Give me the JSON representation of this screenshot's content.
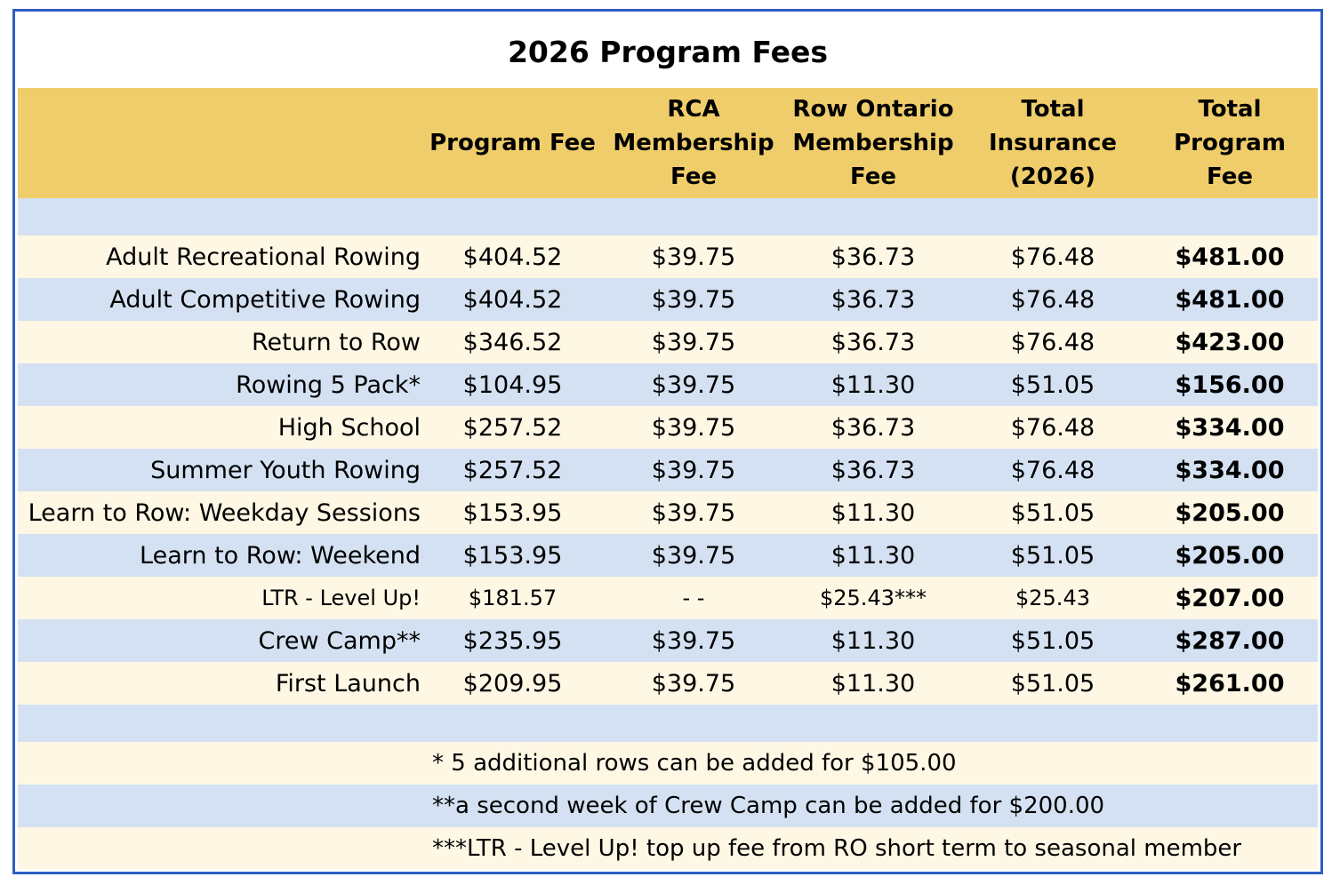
{
  "title": "2026 Program Fees",
  "columns": [
    "Program Fee",
    "RCA Membership Fee",
    "Row Ontario Membership Fee",
    "Total Insurance (2026)",
    "Total Program Fee"
  ],
  "header_lines": [
    [
      "Program Fee"
    ],
    [
      "RCA",
      "Membership",
      "Fee"
    ],
    [
      "Row Ontario",
      "Membership",
      "Fee"
    ],
    [
      "Total",
      "Insurance",
      "(2026)"
    ],
    [
      "Total Program",
      "Fee"
    ]
  ],
  "rows": [
    {
      "name": "Adult Recreational Rowing",
      "program_fee": "$404.52",
      "rca": "$39.75",
      "ro": "$36.73",
      "insurance": "$76.48",
      "total": "$481.00"
    },
    {
      "name": "Adult Competitive Rowing",
      "program_fee": "$404.52",
      "rca": "$39.75",
      "ro": "$36.73",
      "insurance": "$76.48",
      "total": "$481.00"
    },
    {
      "name": "Return to Row",
      "program_fee": "$346.52",
      "rca": "$39.75",
      "ro": "$36.73",
      "insurance": "$76.48",
      "total": "$423.00"
    },
    {
      "name": "Rowing 5 Pack*",
      "program_fee": "$104.95",
      "rca": "$39.75",
      "ro": "$11.30",
      "insurance": "$51.05",
      "total": "$156.00"
    },
    {
      "name": "High School",
      "program_fee": "$257.52",
      "rca": "$39.75",
      "ro": "$36.73",
      "insurance": "$76.48",
      "total": "$334.00"
    },
    {
      "name": "Summer Youth Rowing",
      "program_fee": "$257.52",
      "rca": "$39.75",
      "ro": "$36.73",
      "insurance": "$76.48",
      "total": "$334.00"
    },
    {
      "name": "Learn to Row: Weekday Sessions",
      "program_fee": "$153.95",
      "rca": "$39.75",
      "ro": "$11.30",
      "insurance": "$51.05",
      "total": "$205.00"
    },
    {
      "name": "Learn to Row: Weekend",
      "program_fee": "$153.95",
      "rca": "$39.75",
      "ro": "$11.30",
      "insurance": "$51.05",
      "total": "$205.00"
    },
    {
      "name": "LTR - Level Up!",
      "program_fee": "$181.57",
      "rca": "- -",
      "ro": "$25.43***",
      "insurance": "$25.43",
      "total": "$207.00"
    },
    {
      "name": "Crew Camp**",
      "program_fee": "$235.95",
      "rca": "$39.75",
      "ro": "$11.30",
      "insurance": "$51.05",
      "total": "$287.00"
    },
    {
      "name": "First Launch",
      "program_fee": "$209.95",
      "rca": "$39.75",
      "ro": "$11.30",
      "insurance": "$51.05",
      "total": "$261.00"
    }
  ],
  "notes": [
    "* 5 additional rows can be added for $105.00",
    "**a second week of Crew Camp can be added for $200.00",
    "***LTR - Level Up! top up fee from RO short term to seasonal member"
  ],
  "colors": {
    "border": "#2f5ec4",
    "header": "#f0cd6b",
    "row_blue": "#d3e1f2",
    "row_cream": "#fdf7e4"
  }
}
